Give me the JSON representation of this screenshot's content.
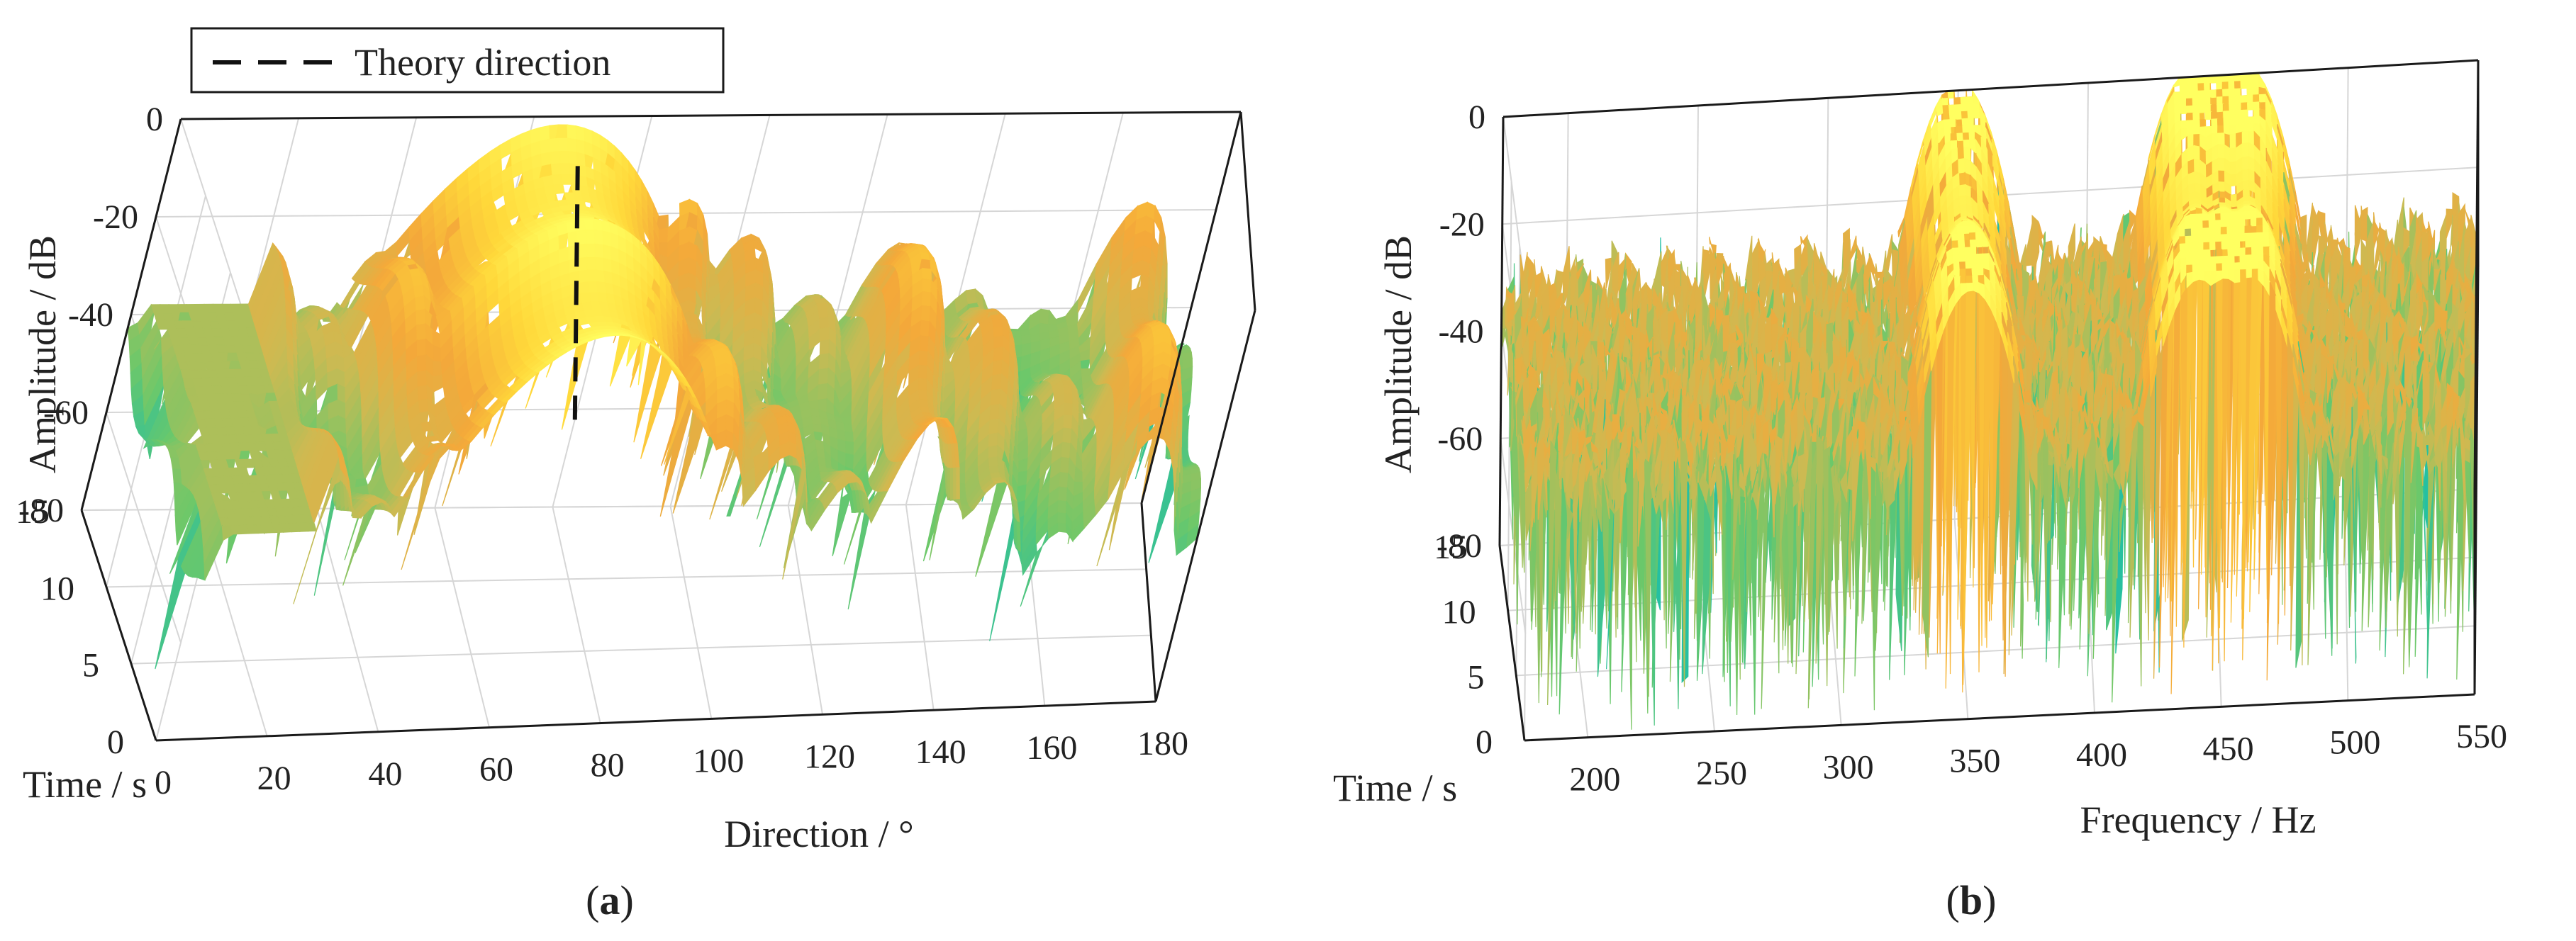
{
  "figure": {
    "panels": [
      {
        "caption_pre": "(",
        "caption_letter": "a",
        "caption_post": ")"
      },
      {
        "caption_pre": "(",
        "caption_letter": "b",
        "caption_post": ")"
      }
    ]
  },
  "chart_data": [
    {
      "type": "surface3d",
      "xlabel": "Direction / °",
      "ylabel": "Time / s",
      "zlabel": "Amplitude / dB",
      "xlim": [
        0,
        180
      ],
      "ylim": [
        0,
        15
      ],
      "zlim": [
        -80,
        0
      ],
      "xticks": [
        "0",
        "20",
        "40",
        "60",
        "80",
        "100",
        "120",
        "140",
        "160",
        "180"
      ],
      "yticks": [
        "0",
        "5",
        "10",
        "15"
      ],
      "zticks": [
        "0",
        "-20",
        "-40",
        "-60",
        "-80"
      ],
      "legend": {
        "entries": [
          {
            "label": "Theory direction",
            "style": "dashed",
            "color": "#111111"
          }
        ],
        "position": "top-left"
      },
      "theory_direction_deg": 65,
      "peak": {
        "direction_deg": 65,
        "amplitude_db": 0
      },
      "sidelobe_directions_deg": [
        10,
        20,
        30,
        40,
        52,
        78,
        90,
        102,
        115,
        128,
        142,
        155,
        168
      ],
      "floor_amplitude_db": -40,
      "colormap": [
        "#3b54c9",
        "#2a9bd2",
        "#1fbfa6",
        "#6cc86a",
        "#cdba52",
        "#f4a83a",
        "#ffd83a",
        "#ffff60"
      ]
    },
    {
      "type": "surface3d",
      "xlabel": "Frequency / Hz",
      "ylabel": "Time / s",
      "zlabel": "Amplitude / dB",
      "xlim": [
        175,
        550
      ],
      "ylim": [
        0,
        15
      ],
      "zlim": [
        -80,
        0
      ],
      "xticks": [
        "200",
        "250",
        "300",
        "350",
        "400",
        "450",
        "500",
        "550"
      ],
      "yticks": [
        "0",
        "5",
        "10",
        "15"
      ],
      "zticks": [
        "0",
        "-20",
        "-40",
        "-60",
        "-80"
      ],
      "peaks_hz": [
        350,
        440,
        450,
        460
      ],
      "peak_amplitude_db": 0,
      "floor_amplitude_db": -30,
      "colormap": [
        "#3b54c9",
        "#2a9bd2",
        "#1fbfa6",
        "#6cc86a",
        "#cdba52",
        "#f4a83a",
        "#ffd83a",
        "#ffff60"
      ]
    }
  ]
}
